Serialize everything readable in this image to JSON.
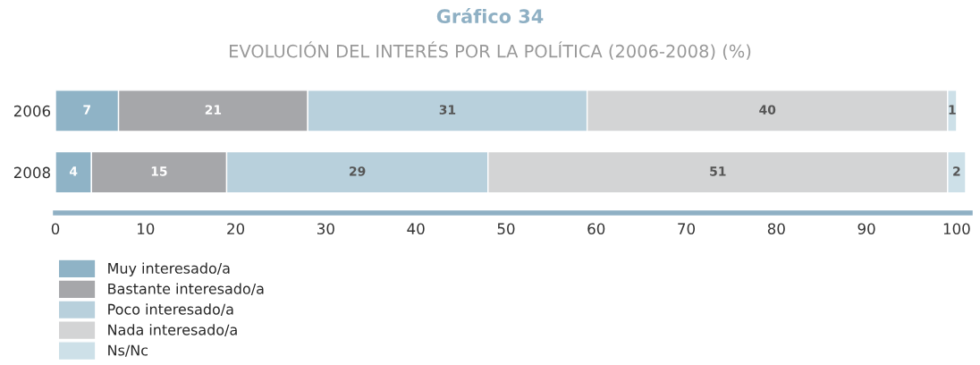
{
  "chart_data": {
    "type": "bar",
    "orientation": "horizontal",
    "stacked": true,
    "title": "Gráfico 34",
    "subtitle": "EVOLUCIÓN DEL INTERÉS POR LA POLÍTICA (2006-2008) (%)",
    "categories": [
      "2006",
      "2008"
    ],
    "series": [
      {
        "name": "Muy interesado/a",
        "color": "#8fb3c6",
        "values": [
          7,
          4
        ]
      },
      {
        "name": "Bastante interesado/a",
        "color": "#a6a7aa",
        "values": [
          21,
          15
        ]
      },
      {
        "name": "Poco interesado/a",
        "color": "#b8d0dc",
        "values": [
          31,
          29
        ]
      },
      {
        "name": "Nada interesado/a",
        "color": "#d3d4d5",
        "values": [
          40,
          51
        ]
      },
      {
        "name": "Ns/Nc",
        "color": "#cde0e8",
        "values": [
          1,
          2
        ]
      }
    ],
    "xlim": [
      0,
      101.5
    ],
    "xticks": [
      0,
      10,
      20,
      30,
      40,
      50,
      60,
      70,
      80,
      90,
      100
    ],
    "data_labels": true,
    "grid": false,
    "legend": "bottom left"
  }
}
